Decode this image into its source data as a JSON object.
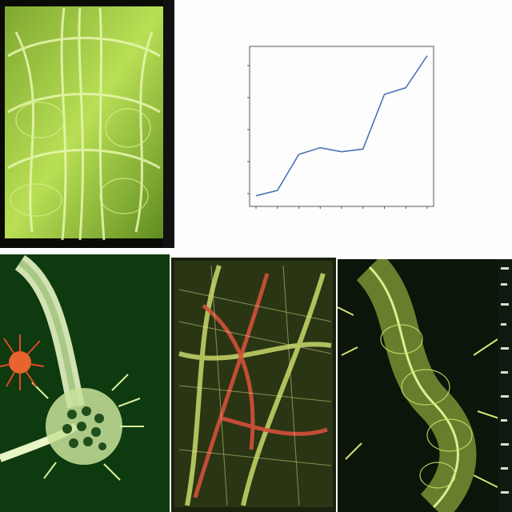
{
  "chart_data": {
    "type": "line",
    "title": "",
    "xlabel": "",
    "ylabel": "",
    "x": [
      0,
      1,
      2,
      3,
      4,
      5,
      6,
      7,
      8
    ],
    "series": [
      {
        "values": [
          0.8,
          1.2,
          3.9,
          4.4,
          4.1,
          4.3,
          8.4,
          8.9,
          11.3
        ]
      }
    ],
    "ylim": [
      0,
      12
    ],
    "xlim": [
      -0.3,
      8.3
    ],
    "grid": false,
    "line_color": "#4a74b4"
  },
  "colors": {
    "specimen_green": "#b6e04a",
    "specimen_dark": "#0d3a0d",
    "accent_red": "#e2482a"
  }
}
